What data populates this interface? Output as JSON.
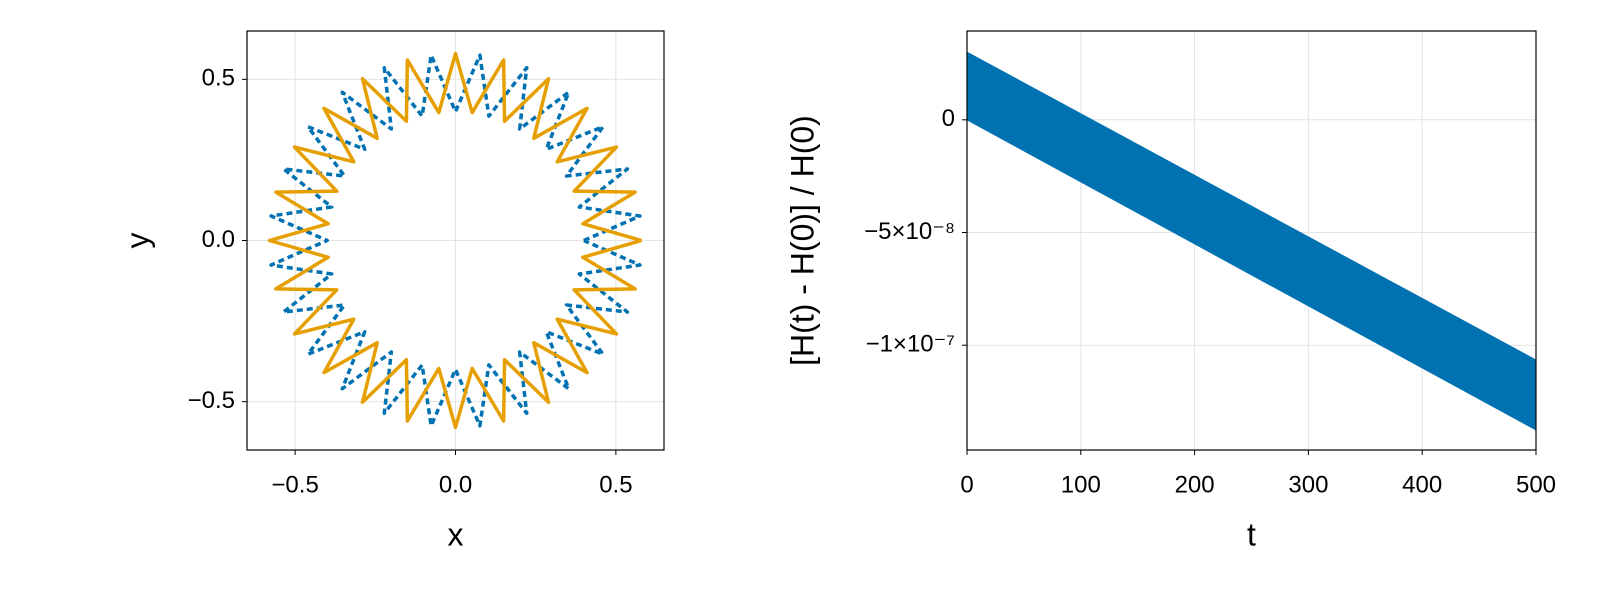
{
  "chart_data": [
    {
      "type": "line",
      "xlabel": "x",
      "ylabel": "y",
      "xlim": [
        -0.65,
        0.65
      ],
      "ylim": [
        -0.65,
        0.65
      ],
      "xticks": [
        {
          "value": -0.5,
          "label": "−0.5"
        },
        {
          "value": 0,
          "label": "0.0"
        },
        0.5
      ],
      "yticks": [
        {
          "value": -0.5,
          "label": "−0.5"
        },
        {
          "value": 0,
          "label": "0.0"
        },
        0.5
      ],
      "grid": true,
      "series": [
        {
          "color": "#0072b2",
          "linestyle": "dash",
          "x": [
            0.4,
            0.575,
            0.386,
            0.536,
            0.346,
            0.46,
            0.283,
            0.353,
            0.2,
            0.222,
            0.104,
            0.076,
            0,
            -0.076,
            -0.104,
            -0.222,
            -0.2,
            -0.353,
            -0.283,
            -0.46,
            -0.346,
            -0.536,
            -0.386,
            -0.575,
            -0.4,
            -0.575,
            -0.386,
            -0.536,
            -0.346,
            -0.46,
            -0.283,
            -0.353,
            -0.2,
            -0.222,
            -0.104,
            -0.076,
            0,
            0.076,
            0.104,
            0.222,
            0.2,
            0.353,
            0.283,
            0.46,
            0.346,
            0.536,
            0.386,
            0.575,
            0.4
          ],
          "values": [
            0,
            0.076,
            0.104,
            0.222,
            0.2,
            0.353,
            0.283,
            0.46,
            0.346,
            0.536,
            0.386,
            0.575,
            0.4,
            0.575,
            0.386,
            0.536,
            0.346,
            0.46,
            0.283,
            0.353,
            0.2,
            0.222,
            0.104,
            0.076,
            0,
            -0.076,
            -0.104,
            -0.222,
            -0.2,
            -0.353,
            -0.283,
            -0.46,
            -0.346,
            -0.536,
            -0.386,
            -0.575,
            -0.4,
            -0.575,
            -0.386,
            -0.536,
            -0.346,
            -0.46,
            -0.283,
            -0.353,
            -0.2,
            -0.222,
            -0.104,
            -0.076,
            0
          ]
        },
        {
          "color": "#e69f00",
          "linestyle": "solid",
          "x": [
            0.58,
            0.397,
            0.56,
            0.37,
            0.502,
            0.317,
            0.41,
            0.244,
            0.29,
            0.153,
            0.15,
            0.052,
            0,
            -0.052,
            -0.15,
            -0.153,
            -0.29,
            -0.244,
            -0.41,
            -0.317,
            -0.502,
            -0.37,
            -0.56,
            -0.397,
            -0.58,
            -0.397,
            -0.56,
            -0.37,
            -0.502,
            -0.317,
            -0.41,
            -0.244,
            -0.29,
            -0.153,
            -0.15,
            -0.052,
            0,
            0.052,
            0.15,
            0.153,
            0.29,
            0.244,
            0.41,
            0.317,
            0.502,
            0.37,
            0.56,
            0.397,
            0.58
          ],
          "values": [
            0,
            0.052,
            0.15,
            0.153,
            0.29,
            0.244,
            0.41,
            0.317,
            0.502,
            0.37,
            0.56,
            0.397,
            0.58,
            0.397,
            0.56,
            0.37,
            0.502,
            0.317,
            0.41,
            0.244,
            0.29,
            0.153,
            0.15,
            0.052,
            0,
            -0.052,
            -0.15,
            -0.153,
            -0.29,
            -0.244,
            -0.41,
            -0.317,
            -0.502,
            -0.37,
            -0.56,
            -0.397,
            -0.58,
            -0.397,
            -0.56,
            -0.37,
            -0.502,
            -0.317,
            -0.41,
            -0.244,
            -0.29,
            -0.153,
            -0.15,
            -0.052,
            0
          ]
        }
      ]
    },
    {
      "type": "band",
      "xlabel": "t",
      "ylabel": "[H(t) - H(0)] / H(0)",
      "xlim": [
        0,
        500
      ],
      "ylim": [
        -1.465e-07,
        3.94e-08
      ],
      "xticks": [
        0,
        100,
        200,
        300,
        400,
        500
      ],
      "yticks": [
        {
          "value": -1e-07,
          "label": "−1×10⁻⁷"
        },
        {
          "value": -5e-08,
          "label": "−5×10⁻⁸"
        },
        0
      ],
      "grid": true,
      "series": [
        {
          "color": "#0072b2",
          "x": [
            0,
            500
          ],
          "upper": [
            3e-08,
            -1.066e-07
          ],
          "lower": [
            0,
            -1.376e-07
          ]
        }
      ]
    }
  ]
}
